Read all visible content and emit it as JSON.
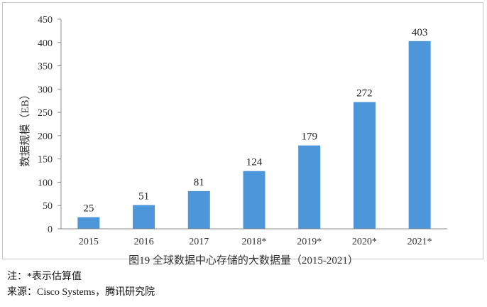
{
  "chart_data": {
    "type": "bar",
    "categories": [
      "2015",
      "2016",
      "2017",
      "2018*",
      "2019*",
      "2020*",
      "2021*"
    ],
    "values": [
      25,
      51,
      81,
      124,
      179,
      272,
      403
    ],
    "data_labels": [
      "25",
      "51",
      "81",
      "124",
      "179",
      "272",
      "403"
    ],
    "ylabel": "数据规模（EB）",
    "ylim": [
      0,
      450
    ],
    "yticks": [
      "0",
      "50",
      "100",
      "150",
      "200",
      "250",
      "300",
      "350",
      "400",
      "450"
    ],
    "bar_color": "#4d96d9",
    "grid": false
  },
  "caption": "图19   全球数据中心存储的大数据量（2015-2021）",
  "notes": {
    "note1": "注：*表示估算值",
    "note2": "来源：Cisco Systems，腾讯研究院"
  }
}
